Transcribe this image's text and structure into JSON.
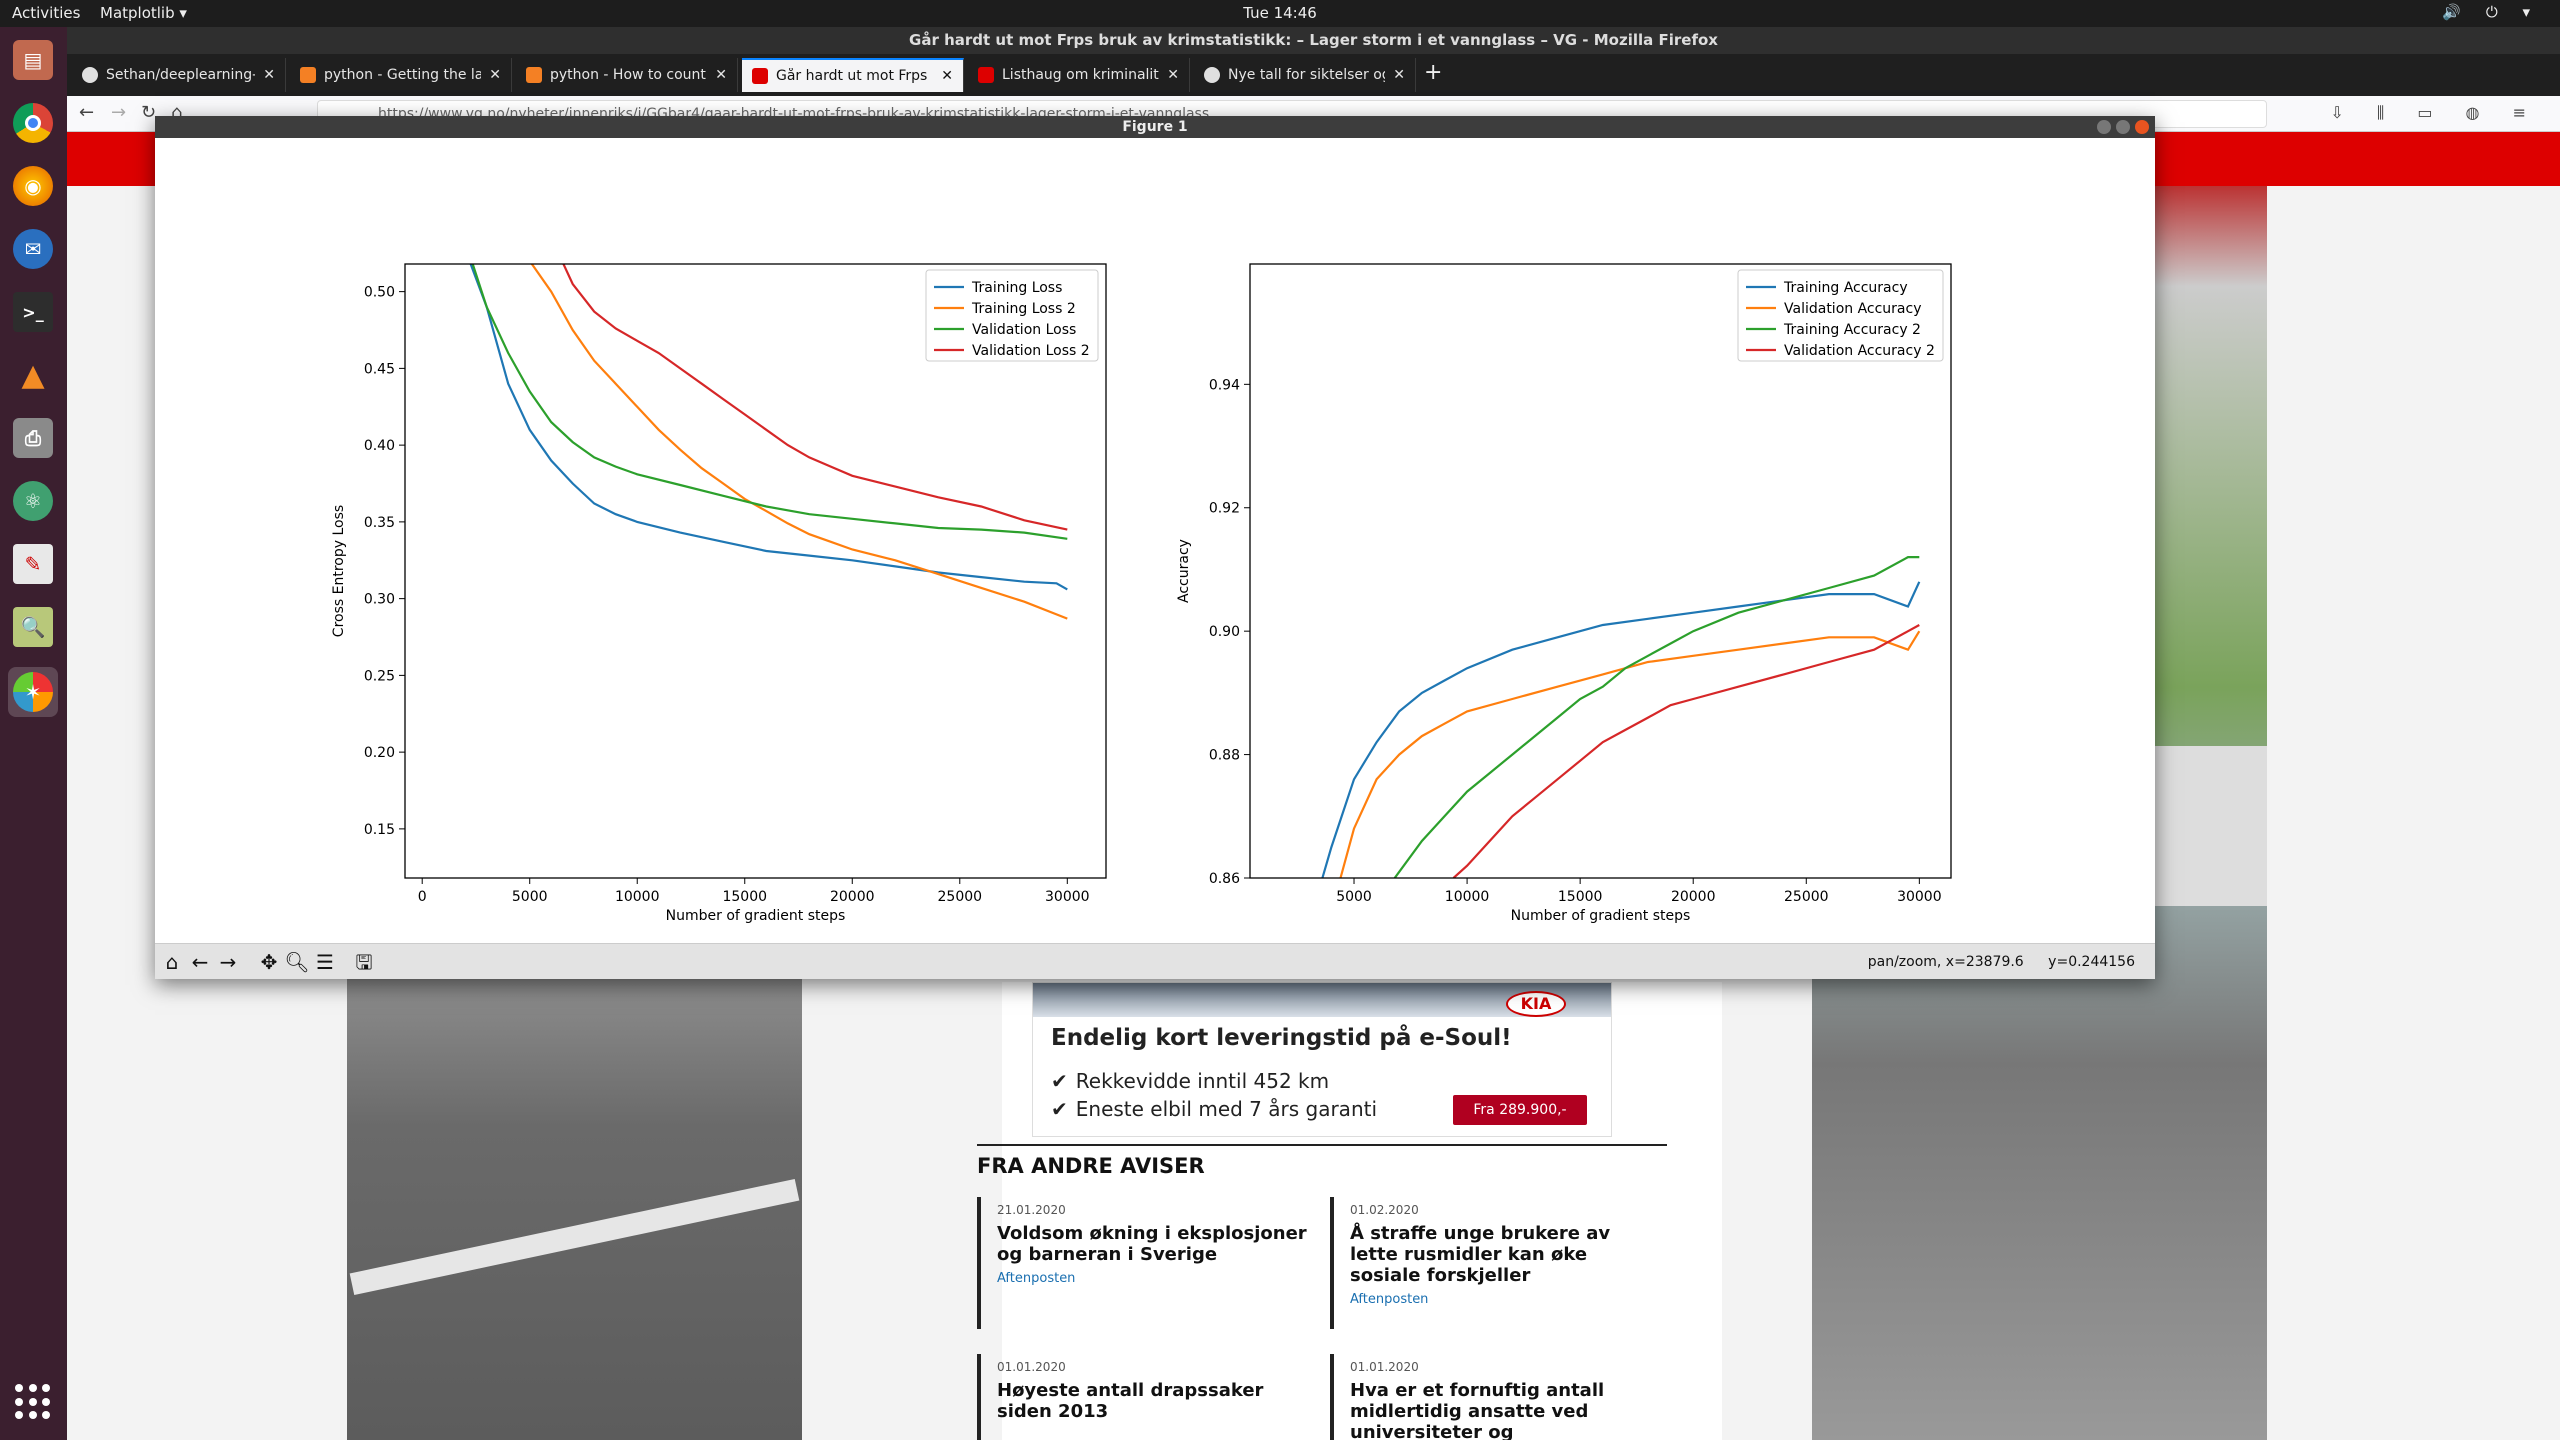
{
  "topbar": {
    "activities": "Activities",
    "app_menu": "Matplotlib ▾",
    "clock": "Tue 14:46",
    "tray": "🔊 ⏻ ▾"
  },
  "firefox": {
    "title": "Går hardt ut mot Frps bruk av krimstatistikk: – Lager storm i et vannglass – VG - Mozilla Firefox",
    "tabs": [
      {
        "label": "Sethan/deeplearning-gr",
        "color": "#e0e0e0"
      },
      {
        "label": "python - Getting the last",
        "color": "#f48024"
      },
      {
        "label": "python - How to count d",
        "color": "#f48024"
      },
      {
        "label": "Går hardt ut mot Frps br",
        "color": "#dd0000"
      },
      {
        "label": "Listhaug om kriminalitet",
        "color": "#dd0000"
      },
      {
        "label": "Nye tall for siktelser og",
        "color": "#e0e0e0"
      }
    ],
    "url": "https://www.vg.no/nyheter/innenriks/i/GGbar4/gaar-hardt-ut-mot-frps-bruk-av-krimstatistikk-lager-storm-i-et-vannglass"
  },
  "ad": {
    "title": "Endelig kort leveringstid på e-Soul!",
    "features": [
      "Rekkevidde inntil 452 km",
      "Eneste elbil med 7 års garanti"
    ],
    "price_button": "Fra 289.900,-",
    "brand": "KIA"
  },
  "fra_andre_aviser": {
    "heading": "FRA ANDRE AVISER",
    "items": [
      {
        "date": "21.01.2020",
        "title": "Voldsom økning i eksplosjoner og barneran i Sverige",
        "source": "Aftenposten"
      },
      {
        "date": "01.02.2020",
        "title": "Å straffe unge brukere av lette rusmidler kan øke sosiale forskjeller",
        "source": "Aftenposten"
      },
      {
        "date": "01.01.2020",
        "title": "Høyeste antall drapssaker siden 2013",
        "source": ""
      },
      {
        "date": "01.01.2020",
        "title": "Hva er et fornuftig antall midlertidig ansatte ved universiteter og",
        "source": ""
      }
    ]
  },
  "matplotlib": {
    "window_title": "Figure 1",
    "status_mode": "pan/zoom, x=23879.6",
    "status_y": "y=0.244156"
  },
  "chart_data": [
    {
      "type": "line",
      "xlabel": "Number of gradient steps",
      "ylabel": "Cross Entropy Loss",
      "xlim": [
        -800,
        31800
      ],
      "ylim": [
        0.118,
        0.518
      ],
      "xticks": [
        0,
        5000,
        10000,
        15000,
        20000,
        25000,
        30000
      ],
      "yticks": [
        0.15,
        0.2,
        0.25,
        0.3,
        0.35,
        0.4,
        0.45,
        0.5
      ],
      "legend": "top-right",
      "series": [
        {
          "name": "Training Loss",
          "color": "#1f77b4",
          "x": [
            2200,
            3000,
            4000,
            5000,
            6000,
            7000,
            8000,
            9000,
            10000,
            12000,
            14000,
            16000,
            18000,
            20000,
            22000,
            24000,
            26000,
            28000,
            29500,
            30000
          ],
          "y": [
            0.52,
            0.49,
            0.44,
            0.41,
            0.39,
            0.375,
            0.362,
            0.355,
            0.35,
            0.343,
            0.337,
            0.331,
            0.328,
            0.325,
            0.321,
            0.317,
            0.314,
            0.311,
            0.31,
            0.306
          ]
        },
        {
          "name": "Training Loss 2",
          "color": "#ff7f0e",
          "x": [
            5000,
            6000,
            7000,
            8000,
            9000,
            10000,
            11000,
            12000,
            13000,
            14000,
            15000,
            16000,
            17000,
            18000,
            19000,
            20000,
            22000,
            24000,
            26000,
            28000,
            30000
          ],
          "y": [
            0.52,
            0.5,
            0.475,
            0.455,
            0.44,
            0.425,
            0.41,
            0.397,
            0.385,
            0.375,
            0.365,
            0.357,
            0.349,
            0.342,
            0.337,
            0.332,
            0.325,
            0.316,
            0.307,
            0.298,
            0.287
          ]
        },
        {
          "name": "Validation Loss",
          "color": "#2ca02c",
          "x": [
            2300,
            3000,
            4000,
            5000,
            6000,
            7000,
            8000,
            9000,
            10000,
            12000,
            14000,
            16000,
            18000,
            20000,
            22000,
            24000,
            26000,
            28000,
            30000
          ],
          "y": [
            0.52,
            0.49,
            0.46,
            0.435,
            0.415,
            0.402,
            0.392,
            0.386,
            0.381,
            0.374,
            0.367,
            0.36,
            0.355,
            0.352,
            0.349,
            0.346,
            0.345,
            0.343,
            0.339
          ]
        },
        {
          "name": "Validation Loss 2",
          "color": "#d62728",
          "x": [
            6500,
            7000,
            8000,
            9000,
            10000,
            11000,
            12000,
            13000,
            14000,
            15000,
            16000,
            17000,
            18000,
            19000,
            20000,
            22000,
            24000,
            26000,
            28000,
            30000
          ],
          "y": [
            0.52,
            0.505,
            0.487,
            0.476,
            0.468,
            0.46,
            0.45,
            0.44,
            0.43,
            0.42,
            0.41,
            0.4,
            0.392,
            0.386,
            0.38,
            0.373,
            0.366,
            0.36,
            0.351,
            0.345
          ]
        }
      ]
    },
    {
      "type": "line",
      "xlabel": "Number of gradient steps",
      "ylabel": "Accuracy",
      "xlim": [
        400,
        31400
      ],
      "ylim": [
        0.86,
        0.9595
      ],
      "xticks": [
        5000,
        10000,
        15000,
        20000,
        25000,
        30000
      ],
      "yticks": [
        0.86,
        0.88,
        0.9,
        0.92,
        0.94
      ],
      "legend": "top-right",
      "series": [
        {
          "name": "Training Accuracy",
          "color": "#1f77b4",
          "x": [
            3600,
            4000,
            5000,
            6000,
            7000,
            8000,
            9000,
            10000,
            12000,
            14000,
            16000,
            18000,
            20000,
            22000,
            24000,
            26000,
            28000,
            29500,
            30000
          ],
          "y": [
            0.86,
            0.865,
            0.876,
            0.882,
            0.887,
            0.89,
            0.892,
            0.894,
            0.897,
            0.899,
            0.901,
            0.902,
            0.903,
            0.904,
            0.905,
            0.906,
            0.906,
            0.904,
            0.908
          ]
        },
        {
          "name": "Validation Accuracy",
          "color": "#ff7f0e",
          "x": [
            4400,
            5000,
            6000,
            7000,
            8000,
            9000,
            10000,
            12000,
            14000,
            16000,
            18000,
            20000,
            22000,
            24000,
            26000,
            28000,
            29500,
            30000
          ],
          "y": [
            0.86,
            0.868,
            0.876,
            0.88,
            0.883,
            0.885,
            0.887,
            0.889,
            0.891,
            0.893,
            0.895,
            0.896,
            0.897,
            0.898,
            0.899,
            0.899,
            0.897,
            0.9
          ]
        },
        {
          "name": "Training Accuracy 2",
          "color": "#2ca02c",
          "x": [
            6800,
            8000,
            9000,
            10000,
            11000,
            12000,
            13000,
            14000,
            15000,
            16000,
            17000,
            18000,
            19000,
            20000,
            22000,
            24000,
            26000,
            28000,
            29500,
            30000
          ],
          "y": [
            0.86,
            0.866,
            0.87,
            0.874,
            0.877,
            0.88,
            0.883,
            0.886,
            0.889,
            0.891,
            0.894,
            0.896,
            0.898,
            0.9,
            0.903,
            0.905,
            0.907,
            0.909,
            0.912,
            0.912
          ]
        },
        {
          "name": "Validation Accuracy 2",
          "color": "#d62728",
          "x": [
            9400,
            10000,
            11000,
            12000,
            13000,
            14000,
            15000,
            16000,
            17000,
            18000,
            19000,
            20000,
            22000,
            24000,
            26000,
            28000,
            29500,
            30000
          ],
          "y": [
            0.86,
            0.862,
            0.866,
            0.87,
            0.873,
            0.876,
            0.879,
            0.882,
            0.884,
            0.886,
            0.888,
            0.889,
            0.891,
            0.893,
            0.895,
            0.897,
            0.9,
            0.901
          ]
        }
      ]
    }
  ]
}
